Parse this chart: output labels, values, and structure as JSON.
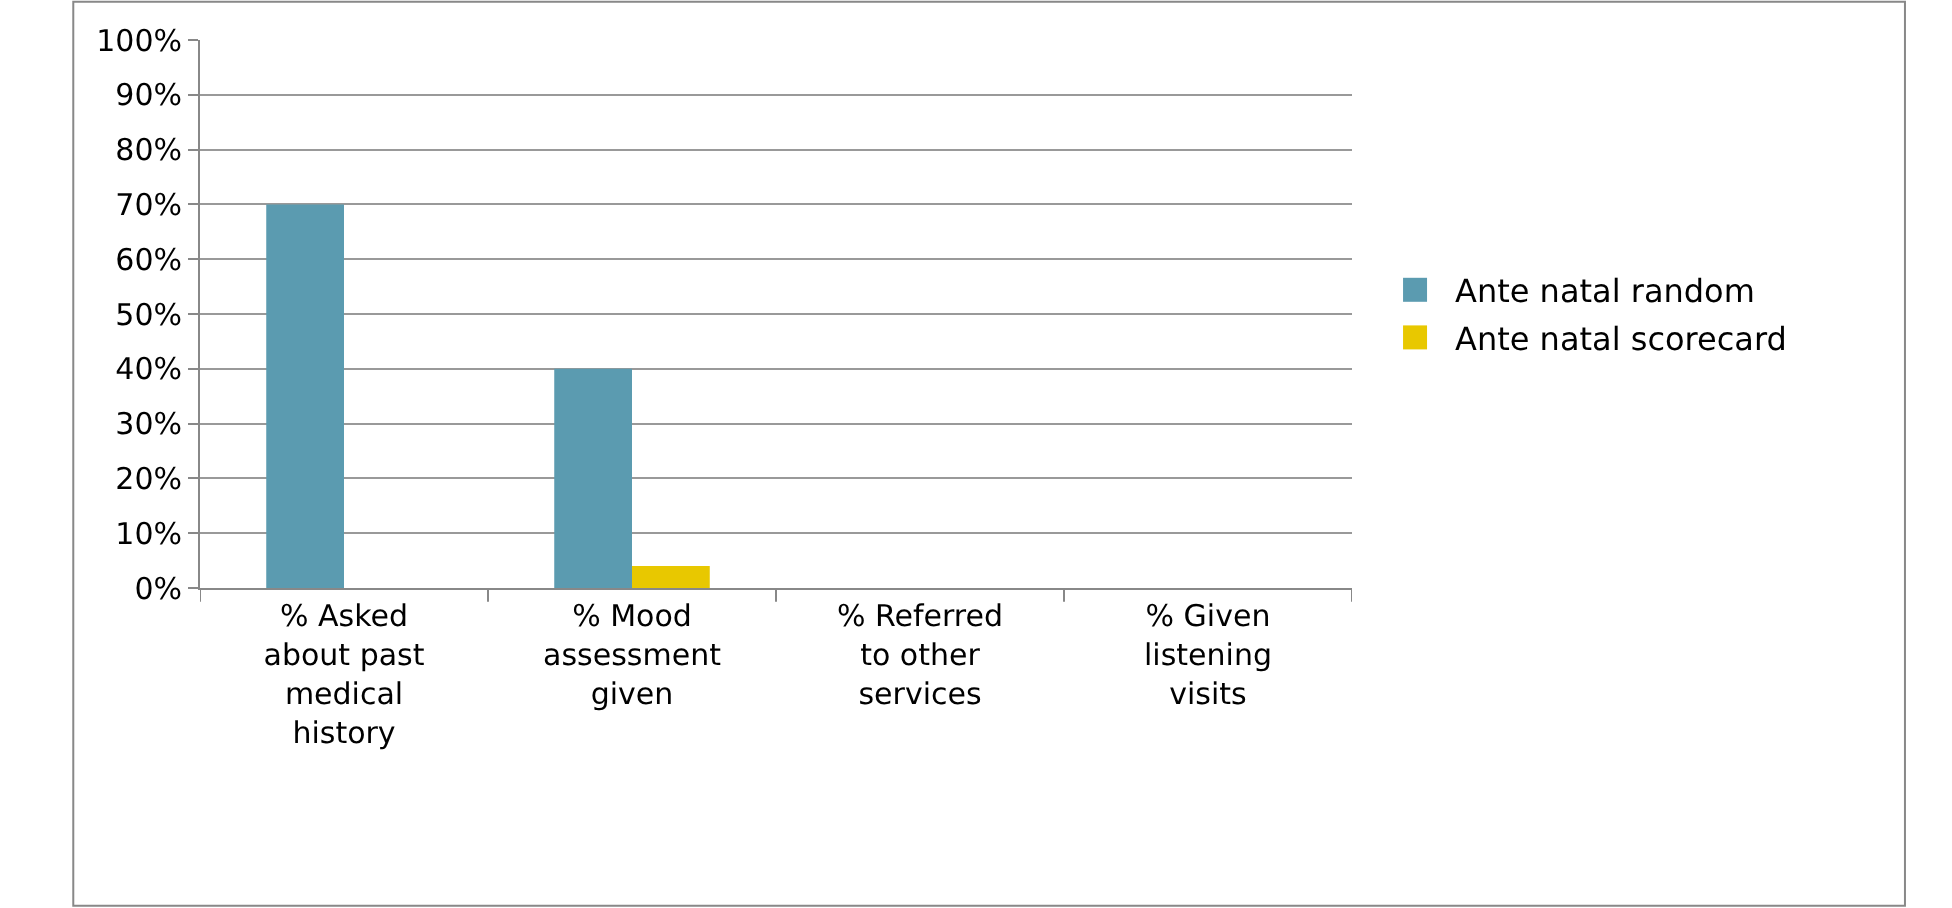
{
  "chart_data": {
    "type": "bar",
    "categories": [
      "% Asked about past medical history",
      "% Mood assessment given",
      "% Referred to other services",
      "% Given listening visits"
    ],
    "series": [
      {
        "name": "Ante natal random",
        "color": "#5b9bb0",
        "values": [
          70,
          40,
          0,
          0
        ]
      },
      {
        "name": "Ante natal scorecard",
        "color": "#e8c800",
        "values": [
          0,
          4,
          0,
          0
        ]
      }
    ],
    "ylim": [
      0,
      100
    ],
    "yticks": [
      {
        "value": 0,
        "label": "0%"
      },
      {
        "value": 10,
        "label": "10%"
      },
      {
        "value": 20,
        "label": "20%"
      },
      {
        "value": 30,
        "label": "30%"
      },
      {
        "value": 40,
        "label": "40%"
      },
      {
        "value": 50,
        "label": "50%"
      },
      {
        "value": 60,
        "label": "60%"
      },
      {
        "value": 70,
        "label": "70%"
      },
      {
        "value": 80,
        "label": "80%"
      },
      {
        "value": 90,
        "label": "90%"
      },
      {
        "value": 100,
        "label": "100%"
      }
    ],
    "grid": "y",
    "legend": "right"
  }
}
